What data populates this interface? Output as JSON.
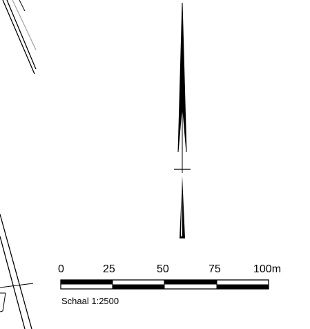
{
  "map": {
    "line_color": "#000000",
    "background": "#ffffff",
    "secondary_line_color": "#a0a0a0"
  },
  "north_arrow": {
    "icon": "north-arrow-icon"
  },
  "scale_bar": {
    "ticks": [
      "0",
      "25",
      "50",
      "75",
      "100m"
    ],
    "caption": "Schaal 1:2500",
    "fill_colors": [
      "#000000",
      "#ffffff"
    ]
  }
}
